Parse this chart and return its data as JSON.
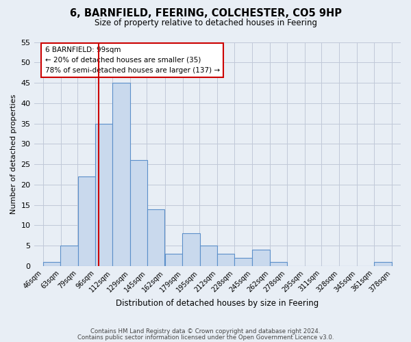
{
  "title": "6, BARNFIELD, FEERING, COLCHESTER, CO5 9HP",
  "subtitle": "Size of property relative to detached houses in Feering",
  "xlabel": "Distribution of detached houses by size in Feering",
  "ylabel": "Number of detached properties",
  "bin_edges": [
    46,
    63,
    79,
    96,
    112,
    129,
    145,
    162,
    179,
    195,
    212,
    228,
    245,
    262,
    278,
    295,
    311,
    328,
    345,
    361,
    378
  ],
  "bin_labels": [
    "46sqm",
    "63sqm",
    "79sqm",
    "96sqm",
    "112sqm",
    "129sqm",
    "145sqm",
    "162sqm",
    "179sqm",
    "195sqm",
    "212sqm",
    "228sqm",
    "245sqm",
    "262sqm",
    "278sqm",
    "295sqm",
    "311sqm",
    "328sqm",
    "345sqm",
    "361sqm",
    "378sqm"
  ],
  "counts": [
    1,
    5,
    22,
    35,
    45,
    26,
    14,
    3,
    8,
    5,
    3,
    2,
    4,
    1,
    0,
    0,
    0,
    0,
    0,
    1
  ],
  "bar_facecolor": "#c9d9ed",
  "bar_edgecolor": "#5b8fc9",
  "vline_x": 99,
  "vline_color": "#cc0000",
  "annotation_box_text": "6 BARNFIELD: 99sqm\n← 20% of detached houses are smaller (35)\n78% of semi-detached houses are larger (137) →",
  "annotation_box_edgecolor": "#cc0000",
  "annotation_box_facecolor": "#ffffff",
  "ylim": [
    0,
    55
  ],
  "yticks": [
    0,
    5,
    10,
    15,
    20,
    25,
    30,
    35,
    40,
    45,
    50,
    55
  ],
  "grid_color": "#c0c8d8",
  "background_color": "#e8eef5",
  "footer_line1": "Contains HM Land Registry data © Crown copyright and database right 2024.",
  "footer_line2": "Contains public sector information licensed under the Open Government Licence v3.0."
}
